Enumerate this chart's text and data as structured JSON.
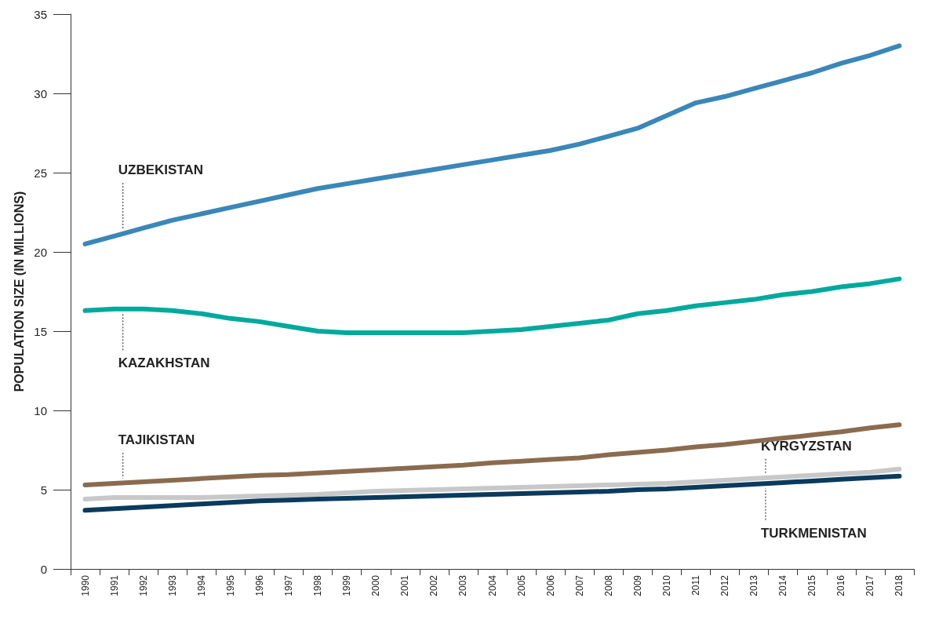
{
  "chart_data": {
    "type": "line",
    "ylabel": "POPULATION SIZE (IN MILLIONS)",
    "categories": [
      "1990",
      "1991",
      "1992",
      "1993",
      "1994",
      "1995",
      "1996",
      "1997",
      "1998",
      "1999",
      "2000",
      "2001",
      "2002",
      "2003",
      "2004",
      "2005",
      "2006",
      "2007",
      "2008",
      "2009",
      "2010",
      "2011",
      "2012",
      "2013",
      "2014",
      "2015",
      "2016",
      "2017",
      "2018"
    ],
    "ylim": [
      0,
      35
    ],
    "yticks": [
      0,
      5,
      10,
      15,
      20,
      25,
      30,
      35
    ],
    "grid": false,
    "legend": false,
    "marker": "none",
    "line_style": "solid",
    "series": [
      {
        "name": "UZBEKISTAN",
        "color": "#3a87b9",
        "values": [
          20.5,
          21.0,
          21.5,
          22.0,
          22.4,
          22.8,
          23.2,
          23.6,
          24.0,
          24.3,
          24.6,
          24.9,
          25.2,
          25.5,
          25.8,
          26.1,
          26.4,
          26.8,
          27.3,
          27.8,
          28.6,
          29.4,
          29.8,
          30.3,
          30.8,
          31.3,
          31.9,
          32.4,
          33.0
        ]
      },
      {
        "name": "KAZAKHSTAN",
        "color": "#00a99d",
        "values": [
          16.3,
          16.4,
          16.4,
          16.3,
          16.1,
          15.8,
          15.6,
          15.3,
          15.0,
          14.9,
          14.9,
          14.9,
          14.9,
          14.9,
          15.0,
          15.1,
          15.3,
          15.5,
          15.7,
          16.1,
          16.3,
          16.6,
          16.8,
          17.0,
          17.3,
          17.5,
          17.8,
          18.0,
          18.3
        ]
      },
      {
        "name": "TAJIKISTAN",
        "color": "#8b6b4f",
        "values": [
          5.3,
          5.4,
          5.5,
          5.6,
          5.7,
          5.8,
          5.9,
          5.95,
          6.05,
          6.15,
          6.25,
          6.35,
          6.45,
          6.55,
          6.7,
          6.8,
          6.9,
          7.0,
          7.2,
          7.35,
          7.5,
          7.7,
          7.85,
          8.05,
          8.25,
          8.45,
          8.65,
          8.9,
          9.1
        ]
      },
      {
        "name": "KYRGYZSTAN",
        "color": "#c8c8c8",
        "values": [
          4.4,
          4.5,
          4.5,
          4.5,
          4.5,
          4.55,
          4.6,
          4.65,
          4.7,
          4.8,
          4.9,
          4.95,
          5.0,
          5.05,
          5.1,
          5.15,
          5.2,
          5.25,
          5.3,
          5.35,
          5.4,
          5.5,
          5.6,
          5.7,
          5.8,
          5.9,
          6.0,
          6.1,
          6.3
        ]
      },
      {
        "name": "TURKMENISTAN",
        "color": "#0a3a5e",
        "values": [
          3.7,
          3.8,
          3.9,
          4.0,
          4.1,
          4.2,
          4.3,
          4.35,
          4.4,
          4.45,
          4.5,
          4.55,
          4.6,
          4.65,
          4.7,
          4.75,
          4.8,
          4.85,
          4.9,
          5.0,
          5.05,
          5.15,
          5.25,
          5.35,
          5.45,
          5.55,
          5.65,
          5.75,
          5.85
        ]
      }
    ]
  }
}
